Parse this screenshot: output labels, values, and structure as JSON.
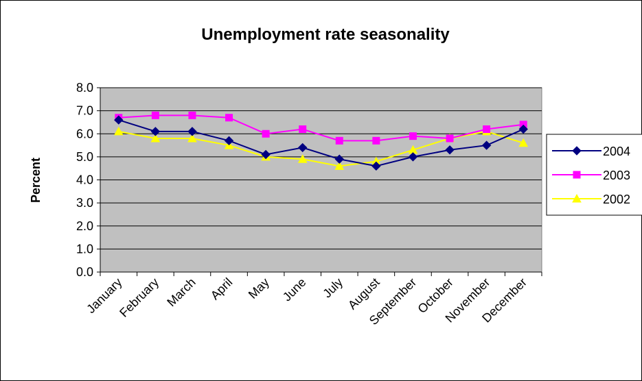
{
  "chart_data": {
    "type": "line",
    "title": "Unemployment rate seasonality",
    "xlabel": "",
    "ylabel": "Percent",
    "ylim": [
      0,
      8
    ],
    "yticks": [
      "0.0",
      "1.0",
      "2.0",
      "3.0",
      "4.0",
      "5.0",
      "6.0",
      "7.0",
      "8.0"
    ],
    "grid": "horizontal",
    "legend_position": "right",
    "plot_background": "#c0c0c0",
    "categories": [
      "January",
      "February",
      "March",
      "April",
      "May",
      "June",
      "July",
      "August",
      "September",
      "October",
      "November",
      "December"
    ],
    "series": [
      {
        "name": "2004",
        "color": "#000080",
        "marker": "diamond",
        "values": [
          6.6,
          6.1,
          6.1,
          5.7,
          5.1,
          5.4,
          4.9,
          4.6,
          5.0,
          5.3,
          5.5,
          6.2
        ]
      },
      {
        "name": "2003",
        "color": "#ff00ff",
        "marker": "square",
        "values": [
          6.7,
          6.8,
          6.8,
          6.7,
          6.0,
          6.2,
          5.7,
          5.7,
          5.9,
          5.8,
          6.2,
          6.4
        ]
      },
      {
        "name": "2002",
        "color": "#ffff00",
        "marker": "triangle",
        "values": [
          6.1,
          5.8,
          5.8,
          5.5,
          5.0,
          4.9,
          4.6,
          4.8,
          5.3,
          5.8,
          6.1,
          5.6
        ]
      }
    ]
  }
}
